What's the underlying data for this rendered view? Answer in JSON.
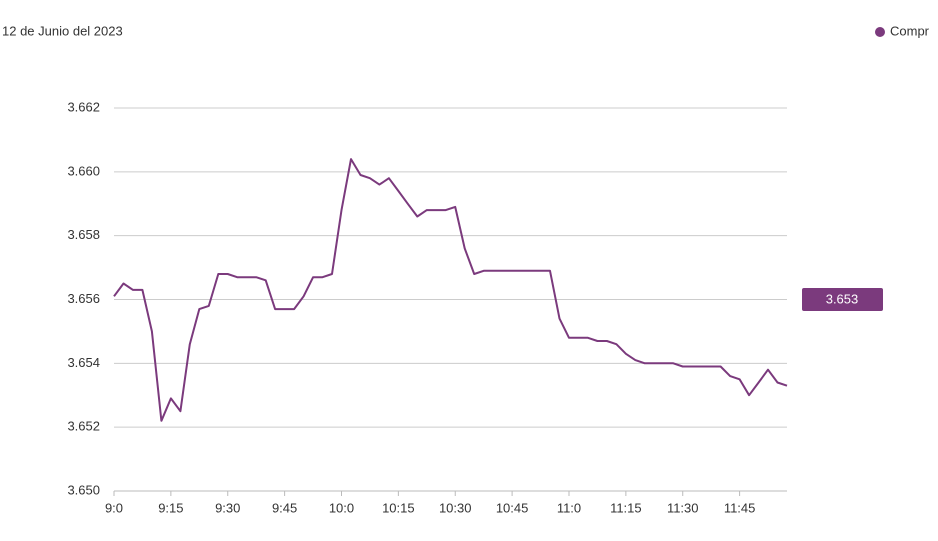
{
  "chart_data": {
    "type": "line",
    "title": "12 de Junio del 2023",
    "categories": [
      "9:0",
      null,
      null,
      null,
      null,
      null,
      "9:15",
      null,
      null,
      null,
      null,
      null,
      "9:30",
      null,
      null,
      null,
      null,
      null,
      "9:45",
      null,
      null,
      null,
      null,
      null,
      "10:0",
      null,
      null,
      null,
      null,
      null,
      "10:15",
      null,
      null,
      null,
      null,
      null,
      "10:30",
      null,
      null,
      null,
      null,
      null,
      "10:45",
      null,
      null,
      null,
      null,
      null,
      "11:0",
      null,
      null,
      null,
      null,
      null,
      "11:15",
      null,
      null,
      null,
      null,
      null,
      "11:30",
      null,
      null,
      null,
      null,
      null,
      "11:45",
      null,
      null,
      null,
      null,
      null
    ],
    "series": [
      {
        "name": "Compr",
        "color": "#7b3a7d",
        "values": [
          3.6561,
          3.6565,
          3.6563,
          3.6563,
          3.655,
          3.6522,
          3.6529,
          3.6525,
          3.6546,
          3.6557,
          3.6558,
          3.6568,
          3.6568,
          3.6567,
          3.6567,
          3.6567,
          3.6566,
          3.6557,
          3.6557,
          3.6557,
          3.6561,
          3.6567,
          3.6567,
          3.6568,
          3.6588,
          3.6604,
          3.6599,
          3.6598,
          3.6596,
          3.6598,
          3.6594,
          3.659,
          3.6586,
          3.6588,
          3.6588,
          3.6588,
          3.6589,
          3.6576,
          3.6568,
          3.6569,
          3.6569,
          3.6569,
          3.6569,
          3.6569,
          3.6569,
          3.6569,
          3.6569,
          3.6554,
          3.6548,
          3.6548,
          3.6548,
          3.6547,
          3.6547,
          3.6546,
          3.6543,
          3.6541,
          3.654,
          3.654,
          3.654,
          3.654,
          3.6539,
          3.6539,
          3.6539,
          3.6539,
          3.6539,
          3.6536,
          3.6535,
          3.653,
          3.6534,
          3.6538,
          3.6534,
          3.6533
        ]
      }
    ],
    "current_value_label": "3.653",
    "ylim": [
      3.65,
      3.662
    ],
    "yticks": [
      {
        "value": 3.65,
        "label": "3.650"
      },
      3.652,
      3.654,
      3.656,
      3.658,
      {
        "value": 3.66,
        "label": "3.660"
      },
      3.662
    ],
    "grid": true,
    "legend": "top-right"
  }
}
